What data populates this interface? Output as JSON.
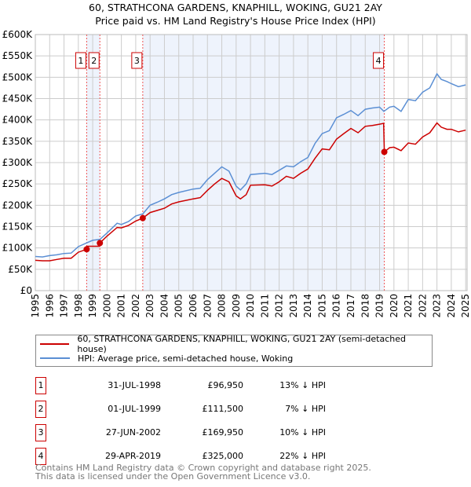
{
  "chart_data": {
    "type": "line",
    "title": "60, STRATHCONA GARDENS, KNAPHILL, WOKING, GU21 2AY",
    "subtitle": "Price paid vs. HM Land Registry's House Price Index (HPI)",
    "xlim": [
      1995,
      2025.1
    ],
    "ylim": [
      0,
      600000
    ],
    "y_ticks": [
      0,
      50000,
      100000,
      150000,
      200000,
      250000,
      300000,
      350000,
      400000,
      450000,
      500000,
      550000,
      600000
    ],
    "y_tick_labels": [
      "£0",
      "£50K",
      "£100K",
      "£150K",
      "£200K",
      "£250K",
      "£300K",
      "£350K",
      "£400K",
      "£450K",
      "£500K",
      "£550K",
      "£600K"
    ],
    "x_ticks": [
      1995,
      1996,
      1997,
      1998,
      1999,
      2000,
      2001,
      2002,
      2003,
      2004,
      2005,
      2006,
      2007,
      2008,
      2009,
      2010,
      2011,
      2012,
      2013,
      2014,
      2015,
      2016,
      2017,
      2018,
      2019,
      2020,
      2021,
      2022,
      2023,
      2024,
      2025
    ],
    "grid": true,
    "shaded_ranges": [
      [
        1998.58,
        1999.5
      ],
      [
        2002.49,
        2019.33
      ]
    ],
    "series": [
      {
        "name": "60, STRATHCONA GARDENS, KNAPHILL, WOKING, GU21 2AY (semi-detached house)",
        "color": "#cc0000",
        "x": [
          1995,
          1995.5,
          1996,
          1996.5,
          1997,
          1997.5,
          1998,
          1998.58,
          1998.6,
          1999.49,
          1999.5,
          2000,
          2000.7,
          2001,
          2001.5,
          2002,
          2002.49,
          2003,
          2003.5,
          2004,
          2004.5,
          2005,
          2006,
          2006.5,
          2007,
          2007.5,
          2008,
          2008.5,
          2009,
          2009.3,
          2009.7,
          2010,
          2011,
          2011.5,
          2012,
          2012.5,
          2013,
          2013.5,
          2014,
          2014.5,
          2015,
          2015.5,
          2016,
          2016.5,
          2017,
          2017.5,
          2018,
          2018.5,
          2019,
          2019.28,
          2019.33,
          2019.7,
          2020,
          2020.5,
          2021,
          2021.5,
          2022,
          2022.5,
          2023,
          2023.3,
          2023.7,
          2024,
          2024.5,
          2025
        ],
        "y": [
          71000,
          70000,
          70000,
          73000,
          76000,
          76000,
          90000,
          96950,
          104000,
          104000,
          111500,
          128000,
          148000,
          147000,
          153000,
          163000,
          169950,
          183000,
          188000,
          193000,
          203000,
          208000,
          215000,
          218000,
          235000,
          250000,
          263000,
          255000,
          222000,
          215000,
          225000,
          247000,
          248000,
          245000,
          255000,
          268000,
          263000,
          275000,
          285000,
          310000,
          332000,
          330000,
          355000,
          368000,
          380000,
          370000,
          385000,
          387000,
          390000,
          392000,
          325000,
          335000,
          336000,
          328000,
          346000,
          343000,
          360000,
          370000,
          393000,
          383000,
          378000,
          378000,
          372000,
          376000
        ]
      },
      {
        "name": "HPI: Average price, semi-detached house, Woking",
        "color": "#5b8fd4",
        "x": [
          1995,
          1995.5,
          1996,
          1996.5,
          1997,
          1997.5,
          1998,
          1998.6,
          1999,
          1999.5,
          2000,
          2000.7,
          2001,
          2001.5,
          2002,
          2002.5,
          2003,
          2003.5,
          2004,
          2004.5,
          2005,
          2006,
          2006.5,
          2007,
          2007.5,
          2008,
          2008.5,
          2009,
          2009.3,
          2009.7,
          2010,
          2011,
          2011.5,
          2012,
          2012.5,
          2013,
          2013.5,
          2014,
          2014.5,
          2015,
          2015.5,
          2016,
          2016.5,
          2017,
          2017.5,
          2018,
          2018.5,
          2019,
          2019.3,
          2019.7,
          2020,
          2020.5,
          2021,
          2021.5,
          2022,
          2022.5,
          2023,
          2023.3,
          2023.7,
          2024,
          2024.5,
          2025
        ],
        "y": [
          80000,
          79000,
          82000,
          84000,
          87000,
          88000,
          103000,
          112000,
          118000,
          120000,
          135000,
          158000,
          155000,
          162000,
          175000,
          180000,
          200000,
          207000,
          215000,
          225000,
          230000,
          238000,
          240000,
          260000,
          275000,
          290000,
          280000,
          245000,
          236000,
          250000,
          272000,
          275000,
          272000,
          282000,
          292000,
          290000,
          302000,
          312000,
          345000,
          368000,
          375000,
          405000,
          413000,
          422000,
          410000,
          425000,
          428000,
          430000,
          420000,
          430000,
          432000,
          420000,
          448000,
          445000,
          465000,
          475000,
          508000,
          495000,
          490000,
          485000,
          478000,
          482000
        ]
      }
    ],
    "markers": [
      {
        "label": "1",
        "x": 1998.58,
        "y": 96950
      },
      {
        "label": "2",
        "x": 1999.5,
        "y": 111500
      },
      {
        "label": "3",
        "x": 2002.49,
        "y": 169950
      },
      {
        "label": "4",
        "x": 2019.33,
        "y": 325000
      }
    ]
  },
  "legend": {
    "red": "60, STRATHCONA GARDENS, KNAPHILL, WOKING, GU21 2AY (semi-detached house)",
    "blue": "HPI: Average price, semi-detached house, Woking"
  },
  "transactions": [
    {
      "num": "1",
      "date": "31-JUL-1998",
      "price": "£96,950",
      "hpi": "13% ↓ HPI"
    },
    {
      "num": "2",
      "date": "01-JUL-1999",
      "price": "£111,500",
      "hpi": "7% ↓ HPI"
    },
    {
      "num": "3",
      "date": "27-JUN-2002",
      "price": "£169,950",
      "hpi": "10% ↓ HPI"
    },
    {
      "num": "4",
      "date": "29-APR-2019",
      "price": "£325,000",
      "hpi": "22% ↓ HPI"
    }
  ],
  "footer": {
    "line1": "Contains HM Land Registry data © Crown copyright and database right 2025.",
    "line2": "This data is licensed under the Open Government Licence v3.0."
  }
}
